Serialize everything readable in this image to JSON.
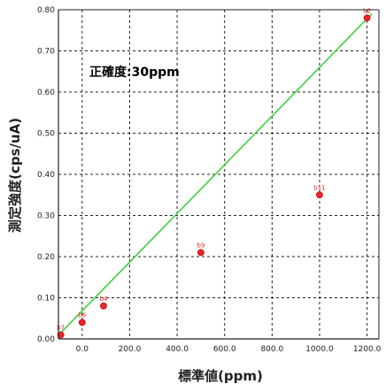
{
  "chart_data": {
    "type": "scatter",
    "xlabel": "標準値(ppm)",
    "ylabel": "測定強度(cps/uA)",
    "annotation": "正確度:30ppm",
    "xlim": [
      -100,
      1250
    ],
    "ylim": [
      0,
      0.8
    ],
    "x_ticks": [
      "0.0",
      "200.0",
      "400.0",
      "600.0",
      "800.0",
      "1000.0",
      "1200.0"
    ],
    "x_tick_values": [
      0,
      200,
      400,
      600,
      800,
      1000,
      1200
    ],
    "y_ticks": [
      "0.00",
      "0.10",
      "0.20",
      "0.30",
      "0.40",
      "0.50",
      "0.60",
      "0.70",
      "0.80"
    ],
    "y_tick_values": [
      0,
      0.1,
      0.2,
      0.3,
      0.4,
      0.5,
      0.6,
      0.7,
      0.8
    ],
    "grid": true,
    "series": [
      {
        "points": [
          {
            "label": "b7",
            "x": -90,
            "y": 0.01
          },
          {
            "label": "b6",
            "x": 0,
            "y": 0.04
          },
          {
            "label": "b4",
            "x": 90,
            "y": 0.08
          },
          {
            "label": "b9",
            "x": 500,
            "y": 0.21
          },
          {
            "label": "b11",
            "x": 1000,
            "y": 0.35
          },
          {
            "label": "b2",
            "x": 1200,
            "y": 0.78
          }
        ]
      }
    ],
    "fit_line": {
      "x": [
        -90,
        1220
      ],
      "y": [
        0.015,
        0.79
      ]
    },
    "colors": {
      "points": "#e8262b",
      "fit_line": "#3dd13d",
      "grid": "#222222"
    }
  }
}
